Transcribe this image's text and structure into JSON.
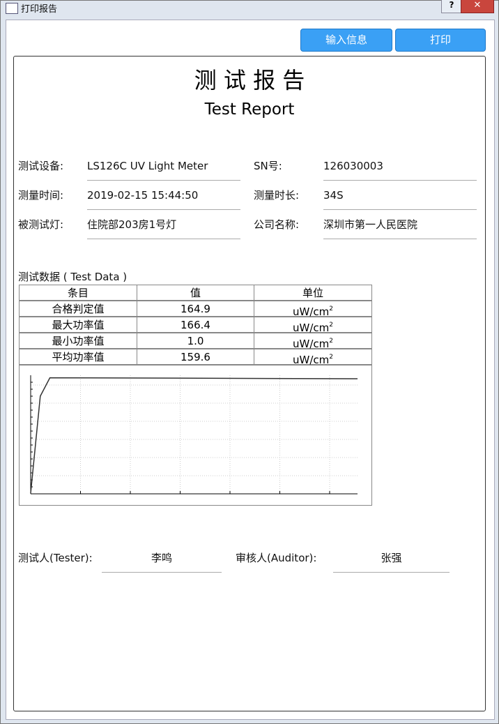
{
  "window": {
    "title": "打印报告",
    "help": "?",
    "buttons": [
      "输入信息",
      "打印"
    ]
  },
  "report": {
    "title": "测 试 报 告",
    "subtitle": "Test Report",
    "info": [
      [
        [
          "测试设备:",
          "LS126C UV Light Meter"
        ],
        [
          "SN号:",
          "126030003"
        ]
      ],
      [
        [
          "测量时间:",
          "2019-02-15 15:44:50"
        ],
        [
          "测量时长:",
          "34S"
        ]
      ],
      [
        [
          "被测试灯:",
          "住院部203房1号灯"
        ],
        [
          "公司名称:",
          "深圳市第一人民医院"
        ]
      ]
    ],
    "table": {
      "caption": "测试数据 ( Test Data )",
      "header": [
        "条目",
        "值",
        "单位"
      ],
      "rows": [
        [
          "合格判定值",
          "164.9",
          {
            "base": "uW/cm",
            "sup": "2"
          }
        ],
        [
          "最大功率值",
          "166.4",
          {
            "base": "uW/cm",
            "sup": "2"
          }
        ],
        [
          "最小功率值",
          "1.0",
          {
            "base": "uW/cm",
            "sup": "2"
          }
        ],
        [
          "平均功率值",
          "159.6",
          {
            "base": "uW/cm",
            "sup": "2"
          }
        ]
      ]
    },
    "signatures": [
      [
        "测试人(Tester):",
        "李鸣"
      ],
      [
        "审核人(Auditor):",
        "张强"
      ]
    ]
  },
  "chart_data": {
    "type": "line",
    "x": [
      0,
      1,
      2,
      34
    ],
    "values": [
      1,
      140,
      166.4,
      165
    ],
    "xlim": [
      0,
      34
    ],
    "ylim": [
      0,
      170
    ],
    "color": "#333333"
  }
}
